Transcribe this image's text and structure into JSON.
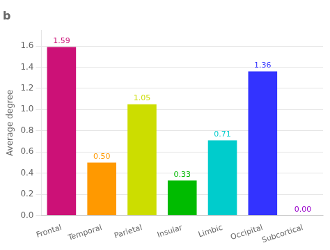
{
  "chart_data": {
    "type": "bar",
    "title": "b",
    "categories": [
      "Frontal",
      "Temporal",
      "Parietal",
      "Insular",
      "Limbic",
      "Occipital",
      "Subcortical"
    ],
    "values": [
      1.59,
      0.5,
      1.05,
      0.33,
      0.71,
      1.36,
      0.0
    ],
    "value_labels": [
      "1.59",
      "0.50",
      "1.05",
      "0.33",
      "0.71",
      "1.36",
      "0.00"
    ],
    "colors": [
      "#cc1177",
      "#ff9900",
      "#ccdd00",
      "#00bb00",
      "#00cccc",
      "#3333ff",
      "#9900cc"
    ],
    "ylabel": "Average degree",
    "ylim": [
      0,
      1.75
    ],
    "yticks": [
      {
        "value": 0,
        "label": "0.0"
      },
      0.2,
      0.4,
      0.6,
      0.8,
      {
        "value": 1.0,
        "label": "1.0"
      },
      1.2,
      1.4,
      1.6
    ],
    "grid": true,
    "data_labels": true
  }
}
